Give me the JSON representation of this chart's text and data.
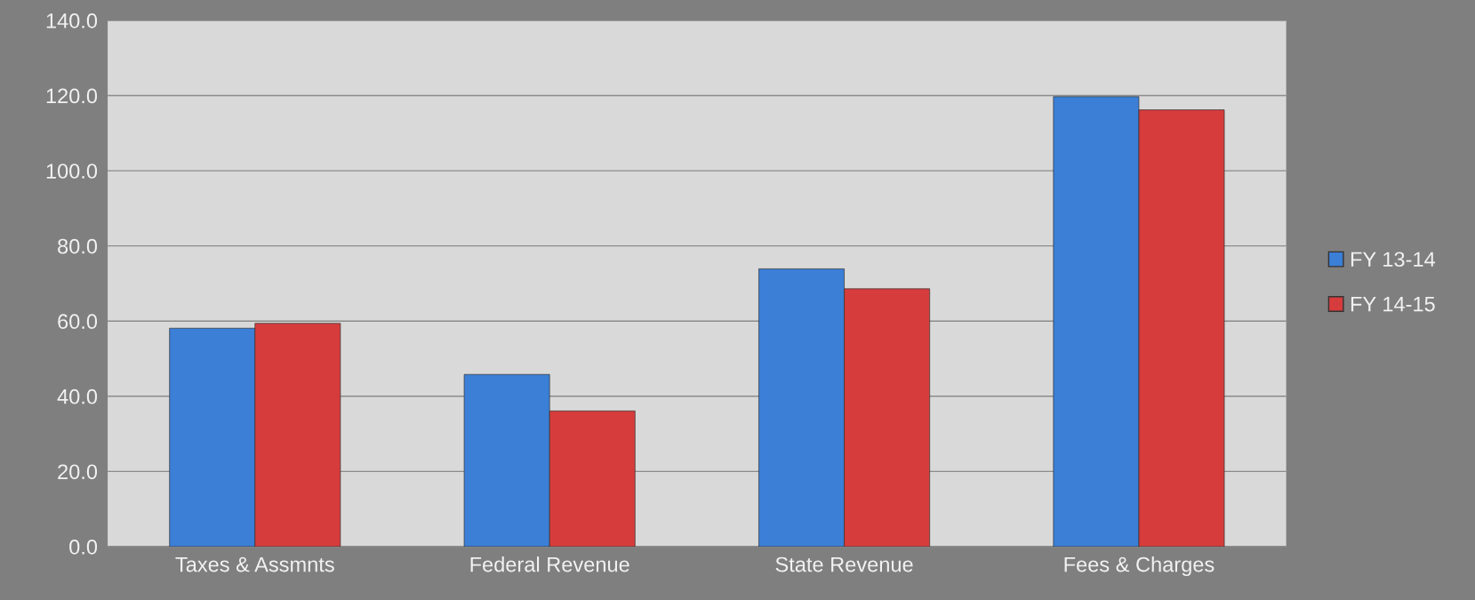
{
  "chart_data": {
    "type": "bar",
    "categories": [
      "Taxes & Assmnts",
      "Federal Revenue",
      "State Revenue",
      "Fees & Charges"
    ],
    "series": [
      {
        "name": "FY 13-14",
        "color": "#3b7fd6",
        "values": [
          58.1,
          45.8,
          73.9,
          119.7
        ]
      },
      {
        "name": "FY 14-15",
        "color": "#d63c3c",
        "values": [
          59.4,
          36.1,
          68.6,
          116.2
        ]
      }
    ],
    "ylim": [
      0,
      140
    ],
    "yticks": [
      {
        "value": 0,
        "label": "0.0"
      },
      {
        "value": 20,
        "label": "20.0"
      },
      {
        "value": 40,
        "label": "40.0"
      },
      {
        "value": 60,
        "label": "60.0"
      },
      {
        "value": 80,
        "label": "80.0"
      },
      {
        "value": 100,
        "label": "100.0"
      },
      {
        "value": 120,
        "label": "120.0"
      },
      {
        "value": 140,
        "label": "140.0"
      }
    ],
    "grid": "y",
    "legend": "right"
  }
}
